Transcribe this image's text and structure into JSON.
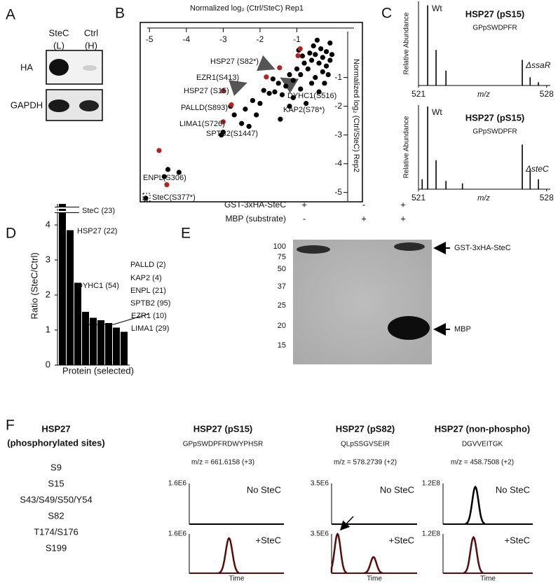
{
  "panel_labels": [
    "A",
    "B",
    "C",
    "D",
    "E",
    "F"
  ],
  "panel_a": {
    "columns": [
      {
        "name": "SteC",
        "label": "(L)"
      },
      {
        "name": "Ctrl",
        "label": "(H)"
      }
    ],
    "rows": [
      "HA",
      "GAPDH"
    ]
  },
  "panel_b": {
    "type": "scatter",
    "x_label": "Normalized log₂ (Ctrl/SteC) Rep1",
    "y_label": "Normalized log₂ (Ctrl/SteC) Rep2",
    "xlim": [
      -5.1,
      0.55
    ],
    "xticks": [
      -5,
      -4,
      -3,
      -2,
      -1
    ],
    "ylim": [
      0.6,
      -5.3
    ],
    "yticks": [
      -1,
      -2,
      -3,
      -4,
      -5
    ],
    "series": [
      {
        "color": "#000000",
        "x": [
          -0.2,
          -0.3,
          -0.1,
          -0.5,
          -0.4,
          -0.6,
          -0.2,
          -0.7,
          -0.3,
          -0.8,
          -0.9,
          -0.5,
          -1.0,
          -0.6,
          -1.1,
          -0.15,
          -0.05,
          -0.35,
          -0.65,
          -0.85,
          -1.2,
          -1.3,
          -0.9,
          -1.5,
          -1.4,
          -1.6,
          -1.75,
          -1.9,
          -2.0,
          -2.2,
          -2.1,
          -2.4,
          -2.5,
          -2.7,
          -2.3,
          -1.45,
          -1.1,
          -0.4,
          -0.25,
          -0.75,
          -1.2,
          -3.0,
          -3.05,
          -4.5,
          -4.2,
          -4.6,
          -5.1,
          -0.45,
          -0.1,
          -0.55,
          -0.95,
          -2.8,
          -1.65
        ],
        "y": [
          -0.1,
          -0.3,
          -0.4,
          -0.2,
          -0.5,
          -0.4,
          -0.6,
          -0.7,
          -0.8,
          -0.5,
          -0.9,
          -1.0,
          -0.7,
          -1.2,
          -1.1,
          -0.9,
          -0.2,
          0.0,
          -0.15,
          -0.25,
          -0.9,
          -1.3,
          -1.4,
          -1.2,
          -1.6,
          -1.5,
          -1.55,
          -1.45,
          -1.9,
          -1.8,
          -2.3,
          -2.1,
          -2.6,
          -2.3,
          -2.7,
          -2.45,
          -1.7,
          -1.5,
          -1.2,
          -1.9,
          -2.0,
          -2.9,
          -3.0,
          -4.2,
          -4.3,
          -4.45,
          -5.2,
          0.3,
          0.2,
          0.1,
          -0.05,
          -2.0,
          -1.05
        ]
      },
      {
        "color": "#b22222",
        "x": [
          -4.53,
          -4.74,
          -3.0,
          -2.78,
          -3.0,
          -1.83,
          -1.47,
          -0.97,
          -0.91
        ],
        "y": [
          -4.73,
          -3.54,
          -2.54,
          -1.95,
          -1.46,
          -0.98,
          -0.66,
          -0.24,
          0.0
        ]
      }
    ],
    "annotations": [
      {
        "text": "HSP27 (S82*)",
        "color": "#b22222"
      },
      {
        "text": "EZR1(S413)",
        "color": "#111111"
      },
      {
        "text": "HSP27 (S15)",
        "color": "#b22222"
      },
      {
        "text": "PALLD(S893)",
        "color": "#111111"
      },
      {
        "text": "LIMA1(S726)",
        "color": "#111111"
      },
      {
        "text": "SPTB2(S1447)",
        "color": "#111111"
      },
      {
        "text": "DYHC1(S516)",
        "color": "#111111"
      },
      {
        "text": "KAP2(S78*)",
        "color": "#111111"
      },
      {
        "text": "ENPL(S306)",
        "color": "#111111"
      },
      {
        "text": "SteC(S377*)",
        "color": "#111111"
      }
    ]
  },
  "panel_c": {
    "type": "spectrum",
    "y_label": "Relative Abundance",
    "x_label": "m/z",
    "xlim": [
      521,
      528.2
    ],
    "xticks": [
      521,
      528
    ],
    "ylim": [
      0,
      100
    ],
    "spectra": [
      {
        "title": "HSP27 (pS15)",
        "sequence": "GPpSWDPFR",
        "peak_labels": [
          "Wt",
          "ΔssaR"
        ],
        "mz": [
          521.5,
          521.96,
          522.5,
          526.67,
          527.1,
          527.55
        ],
        "abundance": [
          97,
          43,
          18,
          31,
          10,
          4
        ]
      },
      {
        "title": "HSP27 (pS15)",
        "sequence": "GPpSWDPFR",
        "peak_labels": [
          "Wt",
          "ΔsteC"
        ],
        "mz": [
          521.2,
          521.5,
          521.96,
          522.5,
          523.4,
          526.67,
          527.1,
          527.55
        ],
        "abundance": [
          12,
          100,
          35,
          10,
          7,
          54,
          25,
          12
        ]
      }
    ]
  },
  "panel_d": {
    "type": "bar",
    "y_label": "Ratio (SteC/Ctrl)",
    "x_label": "Protein (selected)",
    "ylim": [
      0,
      4.6
    ],
    "yticks": [
      0,
      1,
      2,
      3,
      4
    ],
    "color": "#000000",
    "values": [
      4.6,
      3.85,
      2.35,
      1.52,
      1.35,
      1.28,
      1.2,
      1.07,
      0.95
    ],
    "annotations": [
      {
        "text": "SteC (23)",
        "color": "#111111"
      },
      {
        "text": "HSP27 (22)",
        "color": "#b22222"
      },
      {
        "text": "DYHC1 (54)",
        "color": "#111111"
      },
      {
        "text": "PALLD (2)",
        "color": "#111111"
      },
      {
        "text": "KAP2 (4)",
        "color": "#111111"
      },
      {
        "text": "ENPL (21)",
        "color": "#111111"
      },
      {
        "text": "SPTB2 (95)",
        "color": "#111111"
      },
      {
        "text": "EZR1 (10)",
        "color": "#111111"
      },
      {
        "text": "LIMA1 (29)",
        "color": "#111111"
      }
    ]
  },
  "panel_e": {
    "conditions": [
      {
        "name": "GST-3xHA-SteC",
        "signs": [
          "+",
          "-",
          "+"
        ]
      },
      {
        "name": "MBP (substrate)",
        "signs": [
          "-",
          "+",
          "+"
        ]
      }
    ],
    "markers": [
      "100",
      "75",
      "50",
      "37",
      "25",
      "20",
      "15"
    ],
    "band_labels": [
      "GST-3xHA-SteC",
      "MBP"
    ]
  },
  "panel_f": {
    "sites_title": "HSP27",
    "sites_subtitle": "(phosphorylated sites)",
    "sites": [
      "S9",
      "S15",
      "S43/S49/S50/Y54",
      "S82",
      "T174/S176",
      "S199"
    ],
    "chromatograms": [
      {
        "title": "HSP27 (pS15)",
        "sequence": "GPpSWDPFRDWYPHSR",
        "mz": "m/z = 661.6158 (+3)",
        "x_label": "Time",
        "xlim": [
          0,
          100
        ],
        "traces": [
          {
            "condition": "No SteC",
            "color": "#000000",
            "ymax": {
              "value": 1600000,
              "label": "1.6E6"
            },
            "time": [],
            "intensity": []
          },
          {
            "condition": "+SteC",
            "color": "#5a0b0b",
            "ymax": {
              "value": 1600000,
              "label": "1.6E6"
            },
            "time": [
              42
            ],
            "intensity": [
              1430000
            ]
          }
        ]
      },
      {
        "title": "HSP27 (pS82)",
        "sequence": "QLpSSGVSEIR",
        "mz": "m/z = 578.2739 (+2)",
        "x_label": "Time",
        "xlim": [
          0,
          100
        ],
        "traces": [
          {
            "condition": "No SteC",
            "color": "#000000",
            "ymax": {
              "value": 3500000,
              "label": "3.5E6"
            },
            "time": [],
            "intensity": []
          },
          {
            "condition": "+SteC",
            "color": "#5a0b0b",
            "ymax": {
              "value": 3500000,
              "label": "3.5E6"
            },
            "time": [
              7,
              49
            ],
            "intensity": [
              3500000,
              1440000
            ]
          }
        ]
      },
      {
        "title": "HSP27 (non-phospho)",
        "sequence": "DGVVEITGK",
        "mz": "m/z = 458.7508 (+2)",
        "x_label": "Time",
        "xlim": [
          0,
          100
        ],
        "traces": [
          {
            "condition": "No SteC",
            "color": "#000000",
            "ymax": {
              "value": 120000000,
              "label": "1.2E8"
            },
            "time": [
              36
            ],
            "intensity": [
              110000000
            ]
          },
          {
            "condition": "+SteC",
            "color": "#5a0b0b",
            "ymax": {
              "value": 120000000,
              "label": "1.2E8"
            },
            "time": [
              34
            ],
            "intensity": [
              110000000
            ]
          }
        ]
      }
    ]
  }
}
